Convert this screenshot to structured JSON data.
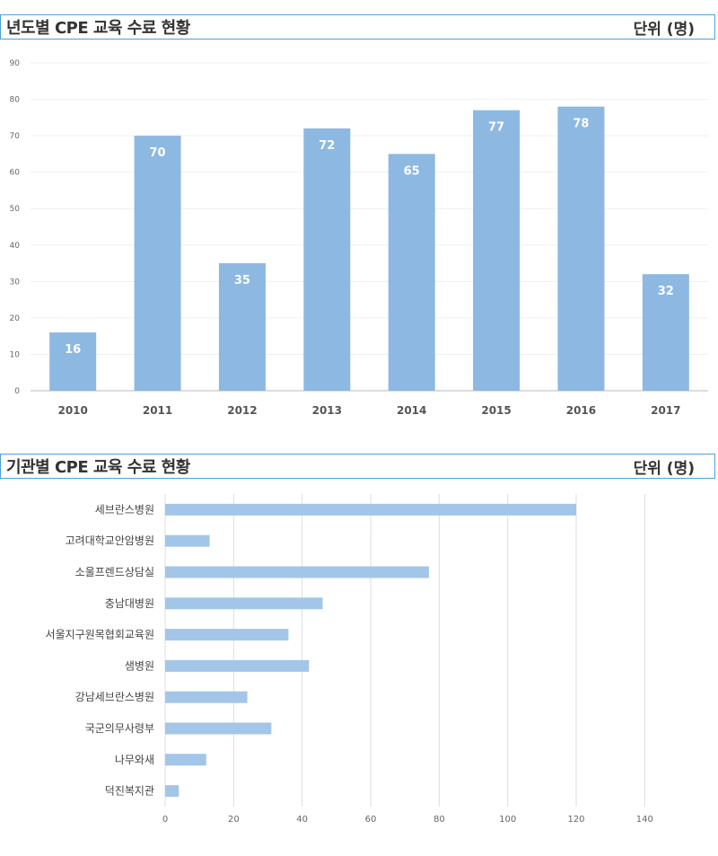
{
  "sections": [
    {
      "title": "년도별 CPE 교육 수료 현황",
      "unit": "단위 (명)"
    },
    {
      "title": "기관별 CPE 교육 수료 현황",
      "unit": "단위 (명)"
    }
  ],
  "chart_data": [
    {
      "type": "bar",
      "orientation": "vertical",
      "categories": [
        "2010",
        "2011",
        "2012",
        "2013",
        "2014",
        "2015",
        "2016",
        "2017"
      ],
      "values": [
        16,
        70,
        35,
        72,
        65,
        77,
        78,
        32
      ],
      "ylim": [
        0,
        90
      ],
      "yticks": [
        0,
        10,
        20,
        30,
        40,
        50,
        60,
        70,
        80,
        90
      ],
      "data_labels": true,
      "bar_color": "#8db8e2",
      "grid": true
    },
    {
      "type": "bar",
      "orientation": "horizontal",
      "categories": [
        "세브란스병원",
        "고려대학교안암병원",
        "소울프렌드상담실",
        "충남대병원",
        "서울지구원목협회교육원",
        "샘병원",
        "강남세브란스병원",
        "국군의무사령부",
        "나무와새",
        "덕진복지관"
      ],
      "values": [
        120,
        13,
        77,
        46,
        36,
        42,
        24,
        31,
        12,
        4
      ],
      "xlim": [
        0,
        160
      ],
      "xticks": [
        0,
        20,
        40,
        60,
        80,
        100,
        120,
        140
      ],
      "bar_color": "#a3c6e8",
      "grid": true
    }
  ]
}
